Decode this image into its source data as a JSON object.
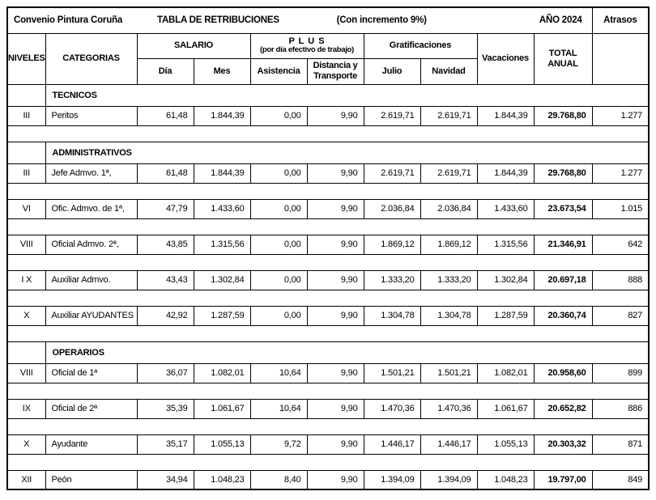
{
  "title_row": {
    "convenio": "Convenio Pintura Coruña",
    "tabla": "TABLA DE RETRIBUCIONES",
    "incremento": "(Con incremento 9%)",
    "ano": "AÑO 2024",
    "atrasos": "Atrasos"
  },
  "header": {
    "niveles": "NIVELES",
    "categorias": "CATEGORIAS",
    "salario": "SALARIO",
    "dia": "Día",
    "mes": "Mes",
    "plus_line1": "P L U S",
    "plus_line2": "(por día efectivo de trabajo)",
    "asistencia": "Asistencia",
    "distancia": "Distancia y Transporte",
    "gratificaciones": "Gratificaciones",
    "julio": "Julio",
    "navidad": "Navidad",
    "vacaciones": "Vacaciones",
    "total_anual": "TOTAL ANUAL"
  },
  "body": {
    "rows": [
      {
        "type": "section",
        "label": "TECNICOS"
      },
      {
        "type": "data",
        "nivel": "III",
        "categoria": "Peritos",
        "dia": "61,48",
        "mes": "1.844,39",
        "asistencia": "0,00",
        "distancia": "9,90",
        "julio": "2.619,71",
        "navidad": "2.619,71",
        "vacaciones": "1.844,39",
        "total": "29.768,80",
        "atrasos": "1.277"
      },
      {
        "type": "spacer"
      },
      {
        "type": "section",
        "label": "ADMINISTRATIVOS"
      },
      {
        "type": "data",
        "nivel": "III",
        "categoria": "Jefe Admvo. 1ª,",
        "dia": "61,48",
        "mes": "1.844,39",
        "asistencia": "0,00",
        "distancia": "9,90",
        "julio": "2.619,71",
        "navidad": "2.619,71",
        "vacaciones": "1.844,39",
        "total": "29.768,80",
        "atrasos": "1.277"
      },
      {
        "type": "spacer"
      },
      {
        "type": "data",
        "nivel": "VI",
        "categoria": "Ofic. Admvo. de 1ª,",
        "dia": "47,79",
        "mes": "1.433,60",
        "asistencia": "0,00",
        "distancia": "9,90",
        "julio": "2.036,84",
        "navidad": "2.036,84",
        "vacaciones": "1.433,60",
        "total": "23.673,54",
        "atrasos": "1.015"
      },
      {
        "type": "spacer"
      },
      {
        "type": "data",
        "nivel": "VIII",
        "categoria": "Oficial Admvo. 2ª,",
        "dia": "43,85",
        "mes": "1.315,56",
        "asistencia": "0,00",
        "distancia": "9,90",
        "julio": "1.869,12",
        "navidad": "1.869,12",
        "vacaciones": "1.315,56",
        "total": "21.346,91",
        "atrasos": "642"
      },
      {
        "type": "spacer"
      },
      {
        "type": "data",
        "nivel": "I X",
        "categoria": "Auxiliar Admvo.",
        "dia": "43,43",
        "mes": "1.302,84",
        "asistencia": "0,00",
        "distancia": "9,90",
        "julio": "1.333,20",
        "navidad": "1.333,20",
        "vacaciones": "1.302,84",
        "total": "20.697,18",
        "atrasos": "888"
      },
      {
        "type": "spacer"
      },
      {
        "type": "data",
        "nivel": "X",
        "categoria": "Auxiliar AYUDANTES",
        "dia": "42,92",
        "mes": "1.287,59",
        "asistencia": "0,00",
        "distancia": "9,90",
        "julio": "1.304,78",
        "navidad": "1.304,78",
        "vacaciones": "1.287,59",
        "total": "20.360,74",
        "atrasos": "827"
      },
      {
        "type": "spacer"
      },
      {
        "type": "section",
        "label": "OPERARIOS"
      },
      {
        "type": "data",
        "nivel": "VIII",
        "categoria": "Oficial de 1ª",
        "dia": "36,07",
        "mes": "1.082,01",
        "asistencia": "10,64",
        "distancia": "9,90",
        "julio": "1.501,21",
        "navidad": "1.501,21",
        "vacaciones": "1.082,01",
        "total": "20.958,60",
        "atrasos": "899"
      },
      {
        "type": "spacer"
      },
      {
        "type": "data",
        "nivel": "IX",
        "categoria": "Oficial de 2ª",
        "dia": "35,39",
        "mes": "1.061,67",
        "asistencia": "10,64",
        "distancia": "9,90",
        "julio": "1.470,36",
        "navidad": "1.470,36",
        "vacaciones": "1.061,67",
        "total": "20.652,82",
        "atrasos": "886"
      },
      {
        "type": "spacer"
      },
      {
        "type": "data",
        "nivel": "X",
        "categoria": "Ayudante",
        "dia": "35,17",
        "mes": "1.055,13",
        "asistencia": "9,72",
        "distancia": "9,90",
        "julio": "1.446,17",
        "navidad": "1.446,17",
        "vacaciones": "1.055,13",
        "total": "20.303,32",
        "atrasos": "871"
      },
      {
        "type": "spacer"
      },
      {
        "type": "data",
        "nivel": "XII",
        "categoria": "Peón",
        "dia": "34,94",
        "mes": "1.048,23",
        "asistencia": "8,40",
        "distancia": "9,90",
        "julio": "1.394,09",
        "navidad": "1.394,09",
        "vacaciones": "1.048,23",
        "total": "19.797,00",
        "atrasos": "849"
      }
    ]
  }
}
